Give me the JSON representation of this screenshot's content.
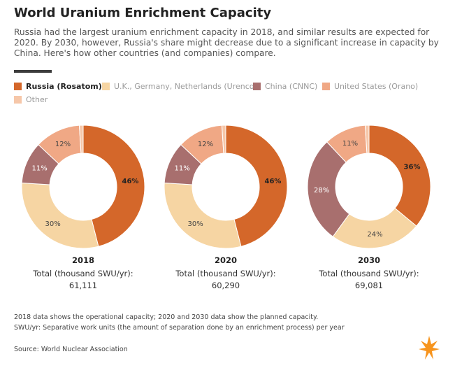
{
  "header": {
    "title": "World Uranium Enrichment Capacity",
    "subtitle": "Russia had the largest uranium enrichment capacity in 2018, and similar results are expected for 2020. By 2030, however, Russia's share might decrease due to a significant increase in capacity by China. Here's how other countries (and companies) compare."
  },
  "legend": [
    {
      "label": "Russia (Rosatom)",
      "color": "#d4672a"
    },
    {
      "label": "U.K., Germany, Netherlands (Urenco)",
      "color": "#f6d5a3"
    },
    {
      "label": "China (CNNC)",
      "color": "#a86f6e"
    },
    {
      "label": "United States (Orano)",
      "color": "#f0a885"
    },
    {
      "label": "Other",
      "color": "#f6c7a9"
    }
  ],
  "chart_data": {
    "type": "pie",
    "variant": "donut",
    "series_names": [
      "Russia (Rosatom)",
      "U.K., Germany, Netherlands (Urenco)",
      "China (CNNC)",
      "United States (Orano)",
      "Other"
    ],
    "colors": [
      "#d4672a",
      "#f6d5a3",
      "#a86f6e",
      "#f0a885",
      "#f6c7a9"
    ],
    "charts": [
      {
        "year": "2018",
        "total_label": "Total (thousand SWU/yr):",
        "total_value": "61,111",
        "values": [
          46,
          30,
          11,
          12,
          1
        ],
        "labels": [
          "46%",
          "30%",
          "11%",
          "12%",
          ""
        ]
      },
      {
        "year": "2020",
        "total_label": "Total (thousand SWU/yr):",
        "total_value": "60,290",
        "values": [
          46,
          30,
          11,
          12,
          1
        ],
        "labels": [
          "46%",
          "30%",
          "11%",
          "12%",
          ""
        ]
      },
      {
        "year": "2030",
        "total_label": "Total (thousand SWU/yr):",
        "total_value": "69,081",
        "values": [
          36,
          24,
          28,
          11,
          1
        ],
        "labels": [
          "36%",
          "24%",
          "28%",
          "11%",
          ""
        ]
      }
    ]
  },
  "footnotes": [
    "2018 data shows the operational capacity; 2020 and 2030 data show the planned capacity.",
    "SWU/yr: Separative work units (the amount of separation done by an enrichment process) per year"
  ],
  "source": "Source: World Nuclear Association",
  "logo": {
    "icon": "flame-logo-icon",
    "color": "#f7941d"
  }
}
